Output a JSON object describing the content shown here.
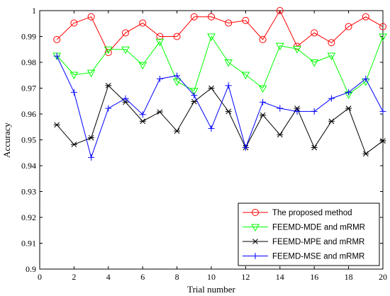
{
  "chart_data": {
    "type": "line",
    "title": "",
    "xlabel": "Trial number",
    "ylabel": "Accuracy",
    "xlim": [
      0,
      20
    ],
    "ylim": [
      0.9,
      1.0
    ],
    "xticks": [
      "0",
      "2",
      "4",
      "6",
      "8",
      "10",
      "12",
      "14",
      "16",
      "18",
      "20"
    ],
    "yticks": [
      "0.9",
      "0.91",
      "0.92",
      "0.93",
      "0.94",
      "0.95",
      "0.96",
      "0.97",
      "0.98",
      "0.99",
      "1"
    ],
    "grid": false,
    "legend_position": "bottom-right",
    "x": [
      1,
      2,
      3,
      4,
      5,
      6,
      7,
      8,
      9,
      10,
      11,
      12,
      13,
      14,
      15,
      16,
      17,
      18,
      19,
      20
    ],
    "series": [
      {
        "name": "The proposed method",
        "color": "#ff0000",
        "marker": "circle",
        "values": [
          0.9888,
          0.9952,
          0.9976,
          0.9838,
          0.9914,
          0.9952,
          0.99,
          0.99,
          0.9976,
          0.9976,
          0.9952,
          0.9962,
          0.9888,
          1.0,
          0.9862,
          0.9914,
          0.9876,
          0.9938,
          0.9976,
          0.9938
        ]
      },
      {
        "name": "FEEMD-MDE and mRMR",
        "color": "#00ff00",
        "marker": "triangle-down",
        "values": [
          0.9826,
          0.9752,
          0.976,
          0.985,
          0.985,
          0.979,
          0.988,
          0.9726,
          0.969,
          0.99,
          0.98,
          0.9752,
          0.97,
          0.9864,
          0.9852,
          0.98,
          0.9826,
          0.9676,
          0.9726,
          0.99
        ]
      },
      {
        "name": "FEEMD-MPE and mRMR",
        "color": "#000000",
        "marker": "asterisk",
        "values": [
          0.9558,
          0.9482,
          0.9508,
          0.971,
          0.9646,
          0.9572,
          0.9608,
          0.9534,
          0.9648,
          0.97,
          0.961,
          0.947,
          0.9596,
          0.952,
          0.9622,
          0.947,
          0.9572,
          0.9622,
          0.9446,
          0.9496
        ]
      },
      {
        "name": "FEEMD-MSE and mRMR",
        "color": "#0000ff",
        "marker": "plus",
        "values": [
          0.9824,
          0.9684,
          0.9432,
          0.9622,
          0.966,
          0.9598,
          0.9736,
          0.9748,
          0.9672,
          0.9544,
          0.971,
          0.947,
          0.9646,
          0.9622,
          0.961,
          0.961,
          0.966,
          0.9684,
          0.9736,
          0.961
        ]
      }
    ]
  }
}
